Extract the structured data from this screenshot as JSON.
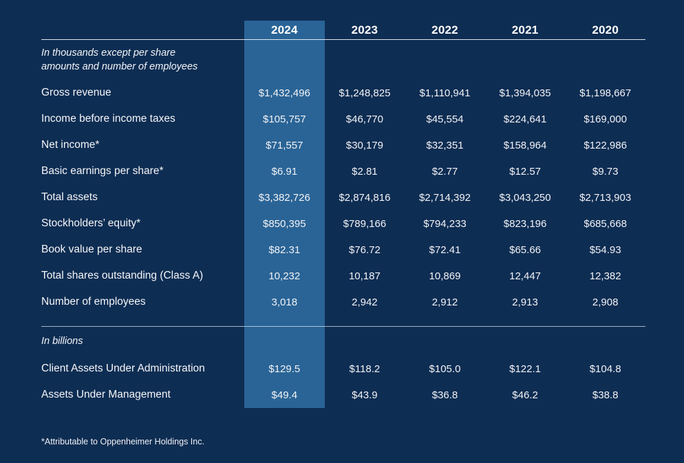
{
  "page": {
    "background_color": "#0e2d53",
    "highlight_color": "#2a6496",
    "line_color": "#e9eef5"
  },
  "table": {
    "years": [
      "2024",
      "2023",
      "2022",
      "2021",
      "2020"
    ],
    "highlighted_year": "2024",
    "section_thousands": {
      "note_line1": "In thousands except per share",
      "note_line2": "amounts and number of employees",
      "rows": [
        {
          "label": "Gross revenue",
          "values": [
            "$1,432,496",
            "$1,248,825",
            "$1,110,941",
            "$1,394,035",
            "$1,198,667"
          ]
        },
        {
          "label": "Income before income taxes",
          "values": [
            "$105,757",
            "$46,770",
            "$45,554",
            "$224,641",
            "$169,000"
          ]
        },
        {
          "label": "Net income*",
          "values": [
            "$71,557",
            "$30,179",
            "$32,351",
            "$158,964",
            "$122,986"
          ]
        },
        {
          "label": "Basic earnings per share*",
          "values": [
            "$6.91",
            "$2.81",
            "$2.77",
            "$12.57",
            "$9.73"
          ]
        },
        {
          "label": "Total assets",
          "values": [
            "$3,382,726",
            "$2,874,816",
            "$2,714,392",
            "$3,043,250",
            "$2,713,903"
          ]
        },
        {
          "label": "Stockholders’ equity*",
          "values": [
            "$850,395",
            "$789,166",
            "$794,233",
            "$823,196",
            "$685,668"
          ]
        },
        {
          "label": "Book value per share",
          "values": [
            "$82.31",
            "$76.72",
            "$72.41",
            "$65.66",
            "$54.93"
          ]
        },
        {
          "label": "Total shares outstanding (Class A)",
          "values": [
            "10,232",
            "10,187",
            "10,869",
            "12,447",
            "12,382"
          ]
        },
        {
          "label": "Number of employees",
          "values": [
            "3,018",
            "2,942",
            "2,912",
            "2,913",
            "2,908"
          ]
        }
      ]
    },
    "section_billions": {
      "note": "In billions",
      "rows": [
        {
          "label": "Client Assets Under Administration",
          "values": [
            "$129.5",
            "$118.2",
            "$105.0",
            "$122.1",
            "$104.8"
          ]
        },
        {
          "label": "Assets Under Management",
          "values": [
            "$49.4",
            "$43.9",
            "$36.8",
            "$46.2",
            "$38.8"
          ]
        }
      ]
    }
  },
  "footnote": "*Attributable to Oppenheimer Holdings Inc."
}
